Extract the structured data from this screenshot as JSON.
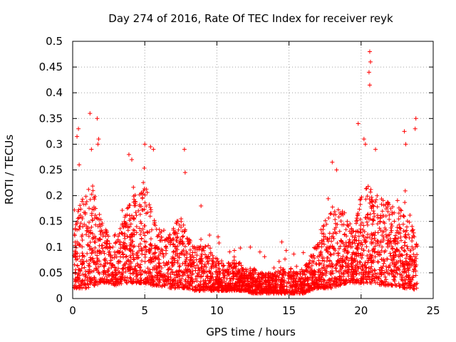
{
  "chart_data": {
    "type": "scatter",
    "title": "Day 274 of 2016, Rate Of TEC Index for receiver reyk",
    "xlabel": "GPS time / hours",
    "ylabel": "ROTI / TECUs",
    "xlim": [
      0,
      25
    ],
    "ylim": [
      0,
      0.5
    ],
    "xticks": [
      0,
      5,
      10,
      15,
      20,
      25
    ],
    "yticks": [
      0,
      0.05,
      0.1,
      0.15,
      0.2,
      0.25,
      0.3,
      0.35,
      0.4,
      0.45,
      0.5
    ],
    "grid": true,
    "marker": "+",
    "color": "#ff0000",
    "envelope": {
      "x": [
        0.1,
        0.5,
        1.0,
        1.5,
        2.0,
        2.5,
        3.0,
        3.5,
        4.0,
        4.5,
        5.0,
        5.5,
        6.0,
        6.5,
        7.0,
        7.5,
        8.0,
        8.5,
        9.0,
        9.5,
        10.0,
        10.5,
        11.0,
        11.5,
        12.0,
        12.5,
        13.0,
        13.5,
        14.0,
        14.5,
        15.0,
        15.5,
        16.0,
        16.5,
        17.0,
        17.5,
        18.0,
        18.5,
        19.0,
        19.5,
        20.0,
        20.5,
        21.0,
        21.5,
        22.0,
        22.5,
        23.0,
        23.5,
        23.9
      ],
      "typical_max": [
        0.13,
        0.19,
        0.2,
        0.22,
        0.15,
        0.13,
        0.12,
        0.15,
        0.2,
        0.21,
        0.23,
        0.17,
        0.13,
        0.12,
        0.14,
        0.17,
        0.12,
        0.1,
        0.11,
        0.09,
        0.08,
        0.07,
        0.07,
        0.07,
        0.06,
        0.06,
        0.05,
        0.05,
        0.05,
        0.06,
        0.06,
        0.05,
        0.06,
        0.08,
        0.12,
        0.15,
        0.18,
        0.19,
        0.16,
        0.13,
        0.2,
        0.22,
        0.2,
        0.2,
        0.19,
        0.18,
        0.17,
        0.16,
        0.12
      ],
      "floor": [
        0.02,
        0.02,
        0.02,
        0.025,
        0.03,
        0.03,
        0.025,
        0.03,
        0.03,
        0.03,
        0.03,
        0.025,
        0.025,
        0.02,
        0.02,
        0.02,
        0.02,
        0.015,
        0.015,
        0.015,
        0.015,
        0.015,
        0.015,
        0.015,
        0.015,
        0.01,
        0.01,
        0.01,
        0.01,
        0.01,
        0.01,
        0.01,
        0.01,
        0.015,
        0.02,
        0.02,
        0.02,
        0.025,
        0.03,
        0.03,
        0.03,
        0.03,
        0.03,
        0.025,
        0.025,
        0.025,
        0.02,
        0.02,
        0.015
      ]
    },
    "peaks": [
      {
        "x": 0.3,
        "y": 0.315
      },
      {
        "x": 0.4,
        "y": 0.33
      },
      {
        "x": 0.45,
        "y": 0.26
      },
      {
        "x": 1.2,
        "y": 0.36
      },
      {
        "x": 1.3,
        "y": 0.29
      },
      {
        "x": 1.7,
        "y": 0.35
      },
      {
        "x": 1.8,
        "y": 0.31
      },
      {
        "x": 1.75,
        "y": 0.3
      },
      {
        "x": 3.9,
        "y": 0.28
      },
      {
        "x": 4.1,
        "y": 0.27
      },
      {
        "x": 5.0,
        "y": 0.3
      },
      {
        "x": 5.4,
        "y": 0.295
      },
      {
        "x": 5.6,
        "y": 0.29
      },
      {
        "x": 7.75,
        "y": 0.29
      },
      {
        "x": 7.8,
        "y": 0.245
      },
      {
        "x": 8.9,
        "y": 0.18
      },
      {
        "x": 14.5,
        "y": 0.11
      },
      {
        "x": 18.0,
        "y": 0.265
      },
      {
        "x": 18.3,
        "y": 0.25
      },
      {
        "x": 19.8,
        "y": 0.34
      },
      {
        "x": 20.2,
        "y": 0.31
      },
      {
        "x": 20.3,
        "y": 0.3
      },
      {
        "x": 20.6,
        "y": 0.48
      },
      {
        "x": 20.65,
        "y": 0.46
      },
      {
        "x": 20.55,
        "y": 0.44
      },
      {
        "x": 20.6,
        "y": 0.415
      },
      {
        "x": 21.0,
        "y": 0.29
      },
      {
        "x": 23.0,
        "y": 0.325
      },
      {
        "x": 23.1,
        "y": 0.3
      },
      {
        "x": 23.8,
        "y": 0.35
      },
      {
        "x": 23.75,
        "y": 0.33
      }
    ]
  }
}
